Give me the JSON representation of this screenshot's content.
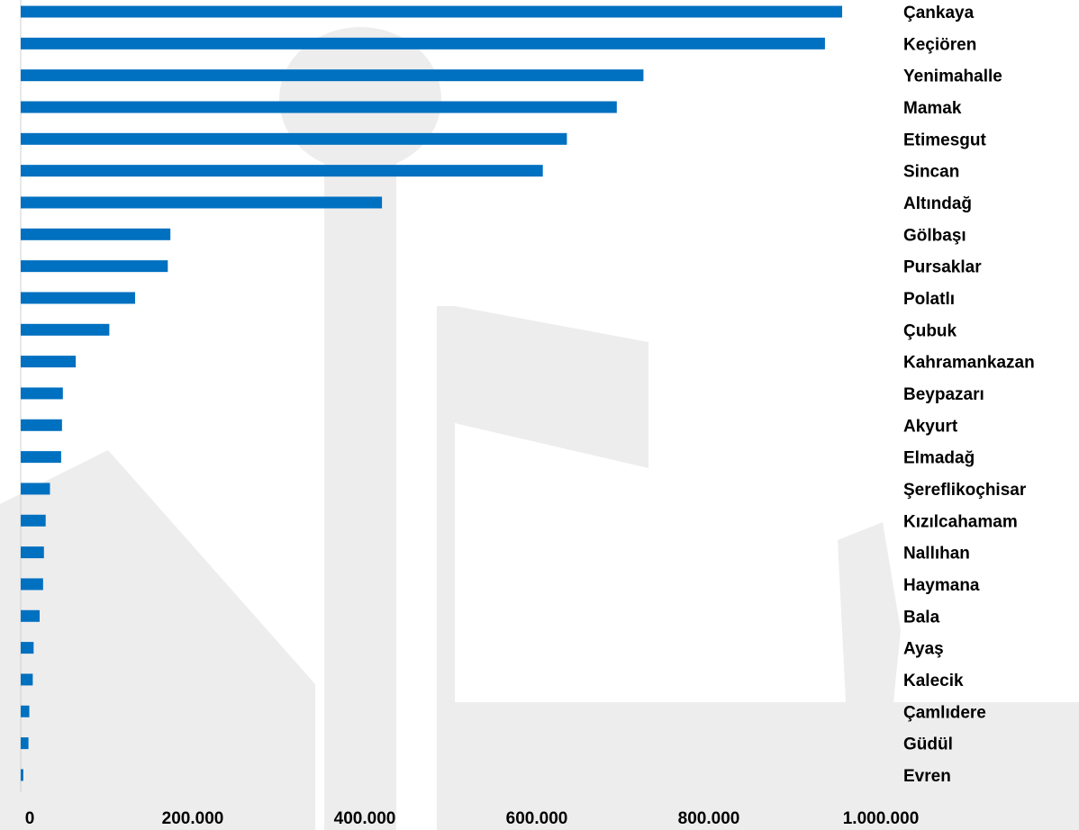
{
  "chart_data": {
    "type": "hbar",
    "categories": [
      "Çankaya",
      "Keçiören",
      "Yenimahalle",
      "Mamak",
      "Etimesgut",
      "Sincan",
      "Altındağ",
      "Gölbaşı",
      "Pursaklar",
      "Polatlı",
      "Çubuk",
      "Kahramankazan",
      "Beypazarı",
      "Akyurt",
      "Elmadağ",
      "Şereflikoçhisar",
      "Kızılcahamam",
      "Nallıhan",
      "Haymana",
      "Bala",
      "Ayaş",
      "Kalecik",
      "Çamlıdere",
      "Güdül",
      "Evren"
    ],
    "values": [
      955000,
      935000,
      724000,
      693000,
      635000,
      607000,
      420000,
      174000,
      171000,
      133000,
      103000,
      64000,
      49000,
      48000,
      47000,
      34000,
      29000,
      27000,
      26000,
      22000,
      15000,
      14000,
      10000,
      9000,
      3000
    ],
    "color": "#0070c0",
    "xlim": [
      0,
      1000000
    ],
    "xticks": [
      0,
      {
        "value": 200000,
        "label": "200.000"
      },
      {
        "value": 400000,
        "label": "400.000"
      },
      {
        "value": 600000,
        "label": "600.000"
      },
      {
        "value": 800000,
        "label": "800.000"
      },
      {
        "value": 1000000,
        "label": "1.000.000"
      }
    ]
  }
}
